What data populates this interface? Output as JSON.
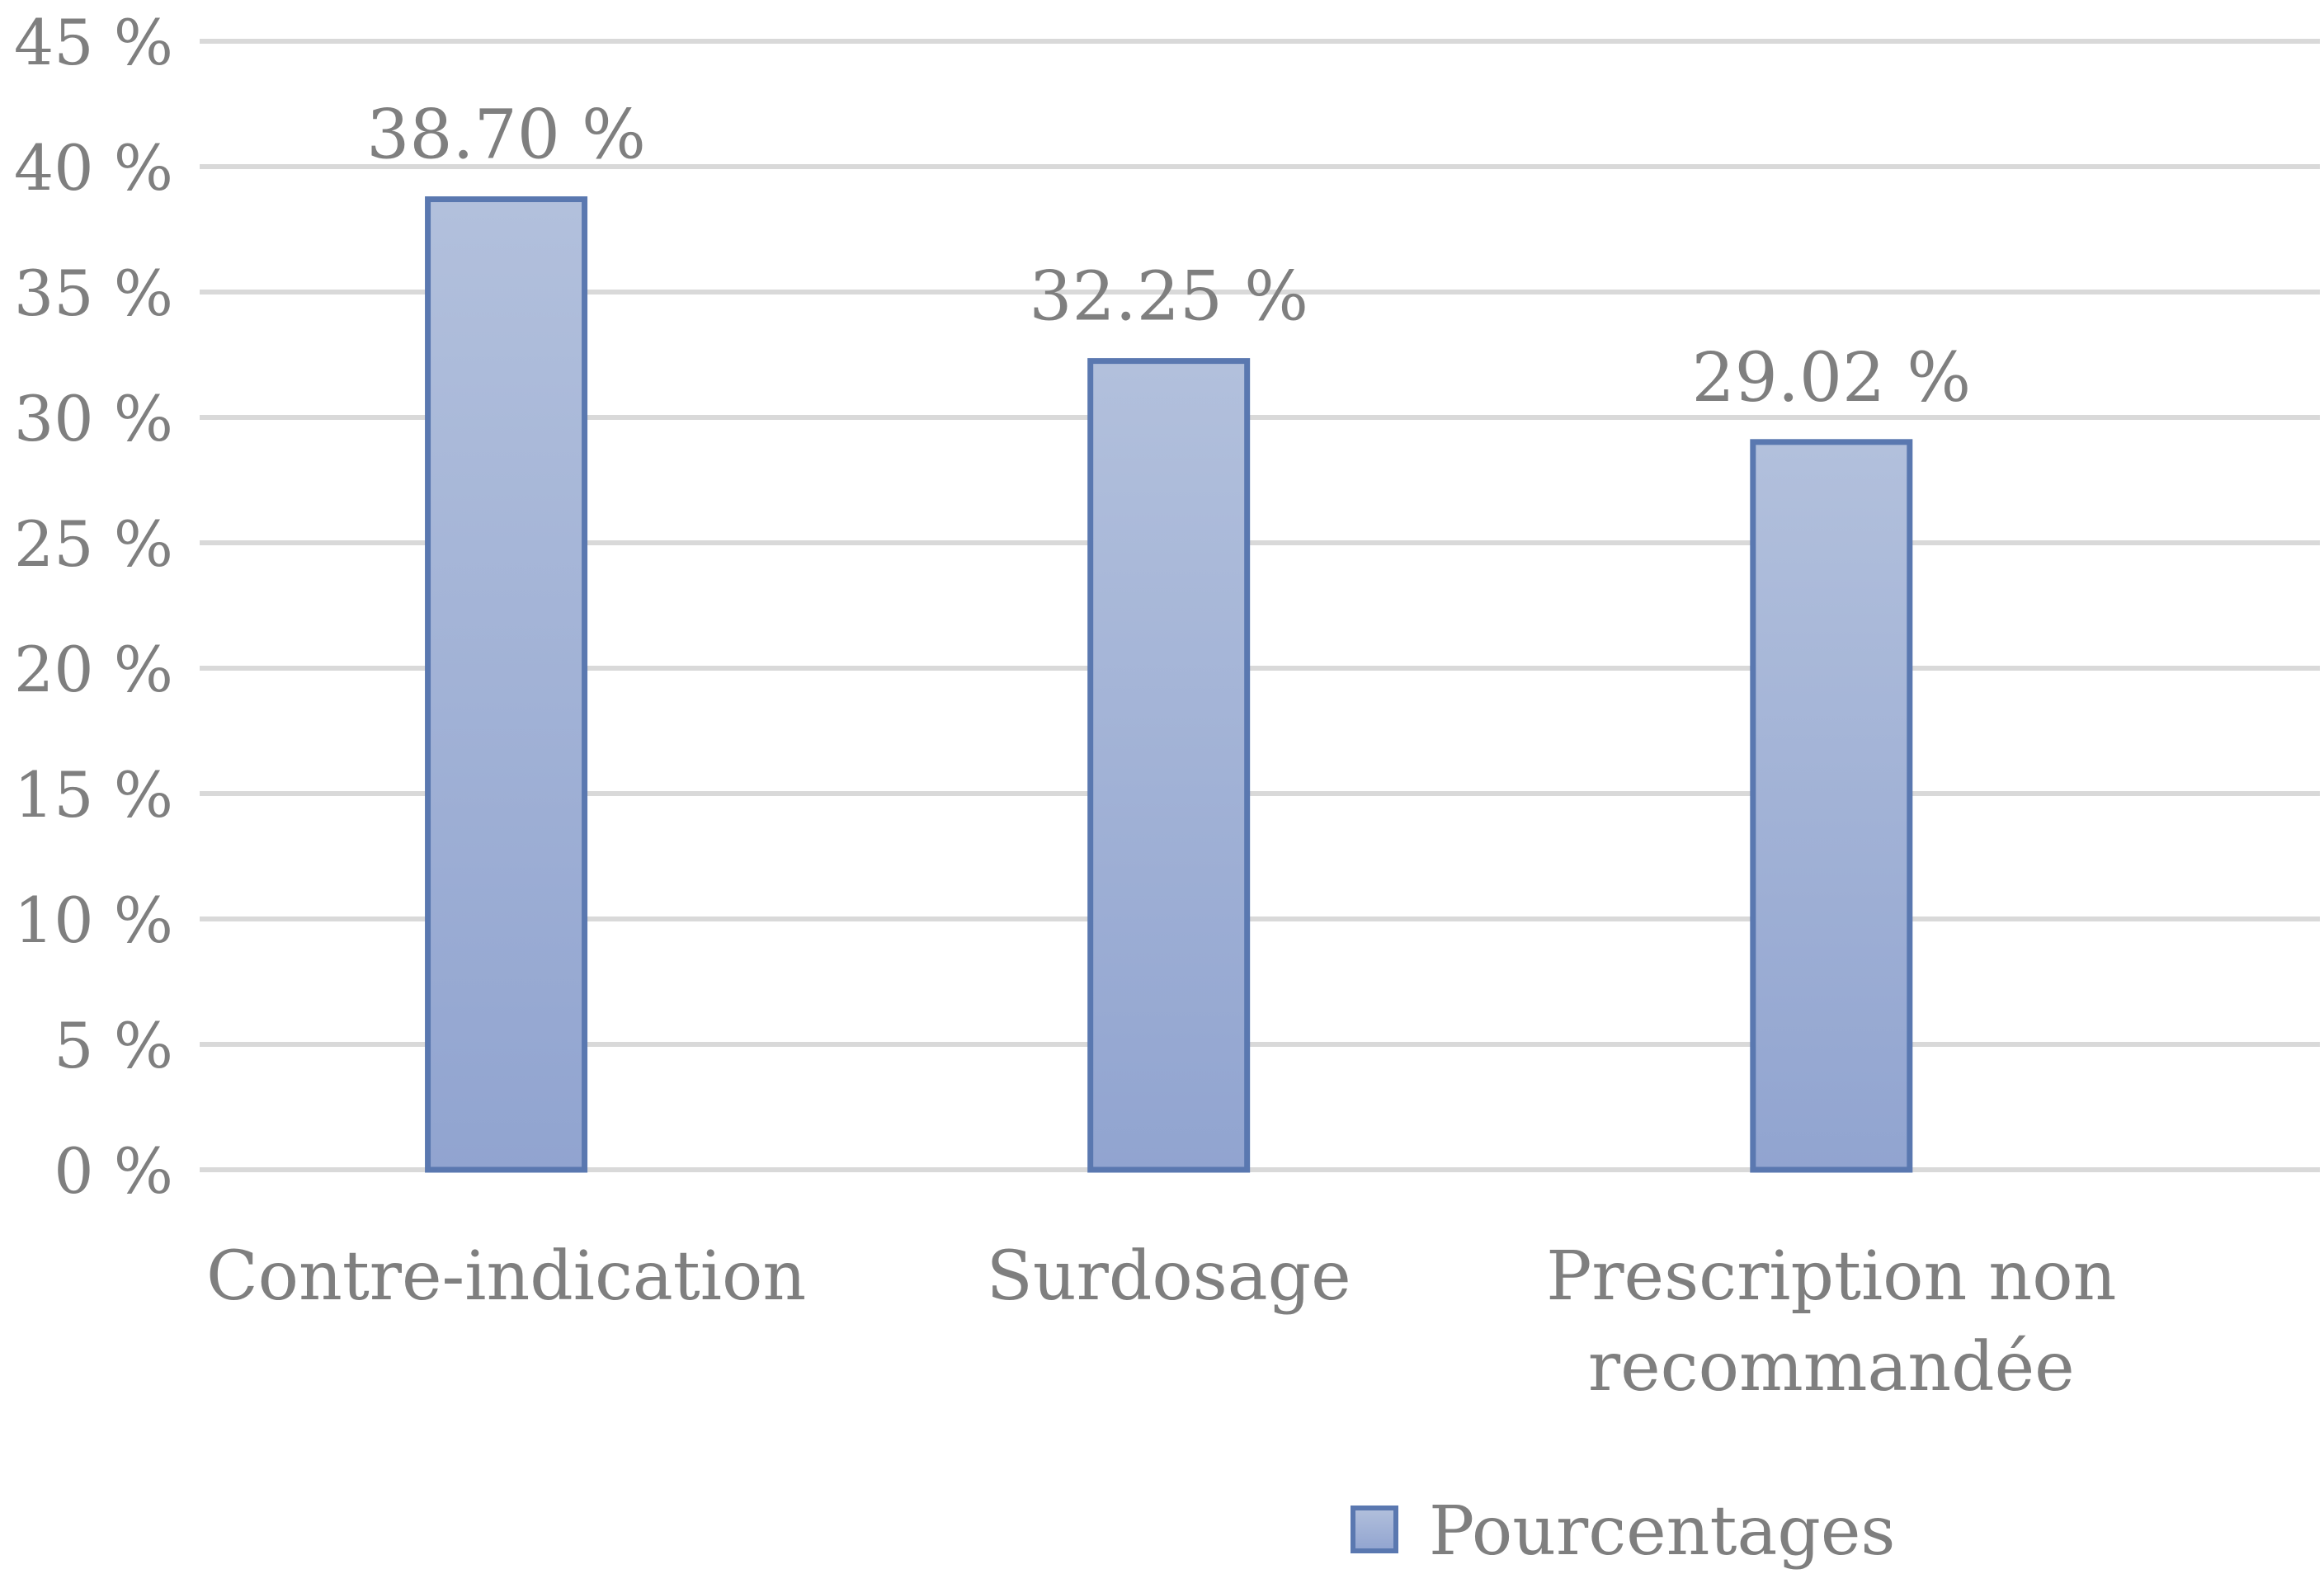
{
  "chart_data": {
    "type": "bar",
    "categories": [
      "Contre-indication",
      "Surdosage",
      "Prescription non recommandée"
    ],
    "category_label_lines": [
      [
        "Contre-indication"
      ],
      [
        "Surdosage"
      ],
      [
        "Prescription non",
        "recommandée"
      ]
    ],
    "series": [
      {
        "name": "Pourcentages",
        "values": [
          38.7,
          32.25,
          29.02
        ],
        "data_labels": [
          "38.70 %",
          "32.25 %",
          "29.02 %"
        ]
      }
    ],
    "y_ticks": [
      0,
      5,
      10,
      15,
      20,
      25,
      30,
      35,
      40,
      45
    ],
    "y_tick_labels": [
      "0 %",
      "5 %",
      "10 %",
      "15 %",
      "20 %",
      "25 %",
      "30 %",
      "35 %",
      "40 %",
      "45 %"
    ],
    "ylim": [
      0,
      45
    ],
    "grid": true,
    "legend_position": "bottom",
    "colors": {
      "bar_top": "#b2c0dc",
      "bar_bottom": "#91a4d0",
      "bar_border": "#5a78b0",
      "grid": "#d9d9d9",
      "text": "#7f7f7f"
    }
  }
}
